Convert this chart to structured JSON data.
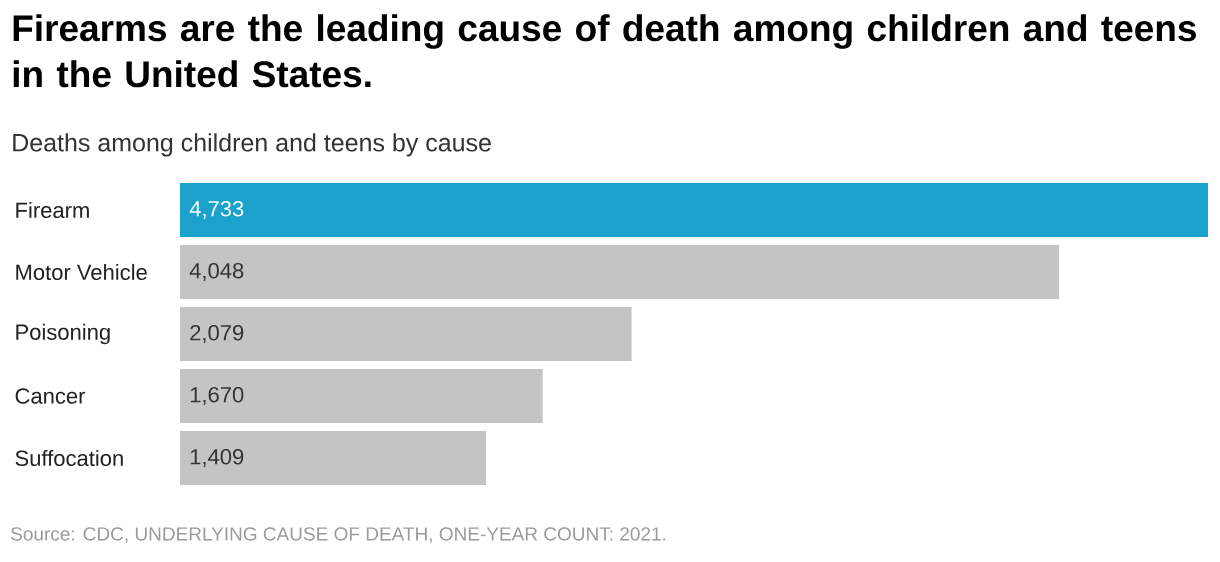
{
  "chart_data": {
    "type": "bar",
    "orientation": "horizontal",
    "title": "Firearms are the leading cause of death among children and teens in the United States.",
    "subtitle": "Deaths among children and teens by cause",
    "categories": [
      "Firearm",
      "Motor Vehicle",
      "Poisoning",
      "Cancer",
      "Suffocation"
    ],
    "values": [
      4733,
      4048,
      2079,
      1670,
      1409
    ],
    "value_labels": [
      "4,733",
      "4,048",
      "2,079",
      "1,670",
      "1,409"
    ],
    "colors": [
      "#1aa1cc",
      "#c4c4c4",
      "#c4c4c4",
      "#c4c4c4",
      "#c4c4c4"
    ],
    "annotations": [
      "Source: CDC, UNDERLYING CAUSE OF DEATH, ONE-YEAR COUNT: 2021."
    ]
  }
}
